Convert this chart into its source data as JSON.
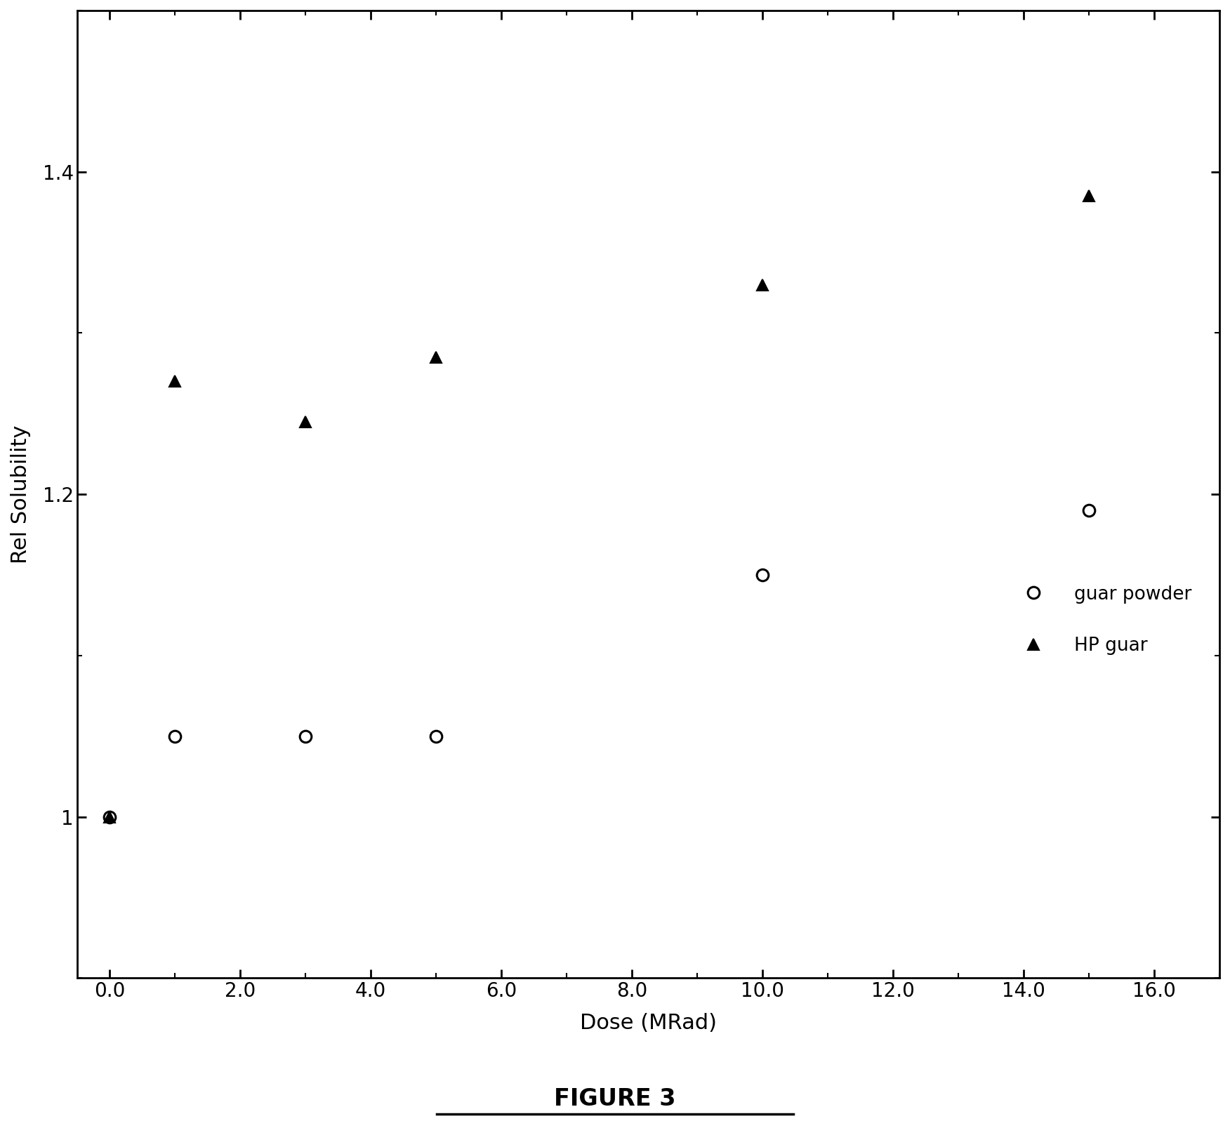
{
  "guar_powder_x": [
    0,
    1,
    3,
    5,
    10,
    15
  ],
  "guar_powder_y": [
    1.0,
    1.05,
    1.05,
    1.05,
    1.15,
    1.19
  ],
  "hp_guar_x": [
    0,
    1,
    3,
    5,
    10,
    15
  ],
  "hp_guar_y": [
    1.0,
    1.27,
    1.245,
    1.285,
    1.33,
    1.385
  ],
  "xlabel": "Dose (MRad)",
  "ylabel": "Rel Solubility",
  "figure_label": "FIGURE 3",
  "xlim": [
    -0.5,
    17.0
  ],
  "ylim": [
    0.9,
    1.5
  ],
  "xticks": [
    0.0,
    2.0,
    4.0,
    6.0,
    8.0,
    10.0,
    12.0,
    14.0,
    16.0
  ],
  "yticks": [
    1.0,
    1.2,
    1.4
  ],
  "ytick_labels": [
    "1",
    "1.2",
    "1.4"
  ],
  "legend_labels": [
    "guar powder",
    "HP guar"
  ],
  "background_color": "#ffffff",
  "marker_color": "#000000",
  "marker_size_circle": 12,
  "marker_size_triangle": 12,
  "axis_label_fontsize": 22,
  "tick_fontsize": 20,
  "legend_fontsize": 19,
  "figure_label_fontsize": 24
}
